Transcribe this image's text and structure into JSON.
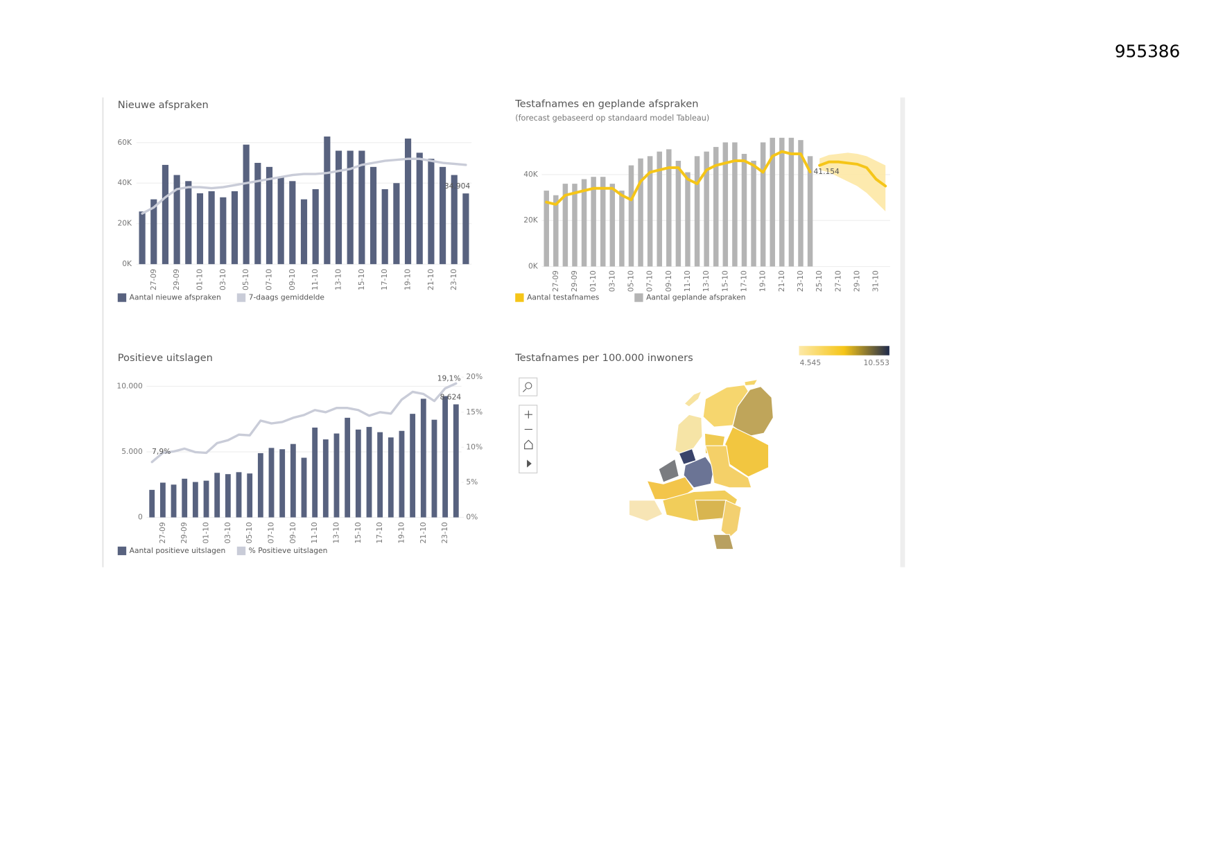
{
  "header": {
    "page_number": "955386"
  },
  "chart_data": [
    {
      "type": "bar",
      "title": "Nieuwe afspraken",
      "categories": [
        null,
        "27-09",
        null,
        "29-09",
        null,
        "01-10",
        null,
        "03-10",
        null,
        "05-10",
        null,
        "07-10",
        null,
        "09-10",
        null,
        "11-10",
        null,
        "13-10",
        null,
        "15-10",
        null,
        "17-10",
        null,
        "19-10",
        null,
        "21-10",
        null,
        "23-10",
        null
      ],
      "series": [
        {
          "name": "Aantal nieuwe afspraken",
          "type": "bar",
          "color": "#58627f",
          "values": [
            26000,
            32000,
            49000,
            44000,
            41000,
            35000,
            36000,
            33000,
            36000,
            59000,
            50000,
            48000,
            43000,
            41000,
            32000,
            37000,
            63000,
            56000,
            56000,
            56000,
            48000,
            37000,
            40000,
            62000,
            55000,
            52000,
            48000,
            44000,
            34904
          ],
          "value_labels": [
            null,
            null,
            null,
            null,
            null,
            null,
            null,
            null,
            null,
            null,
            null,
            null,
            null,
            null,
            null,
            null,
            null,
            null,
            null,
            null,
            null,
            null,
            null,
            null,
            null,
            null,
            null,
            null,
            "34.904"
          ]
        },
        {
          "name": "7-daags gemiddelde",
          "type": "line",
          "color": "#c9ccd8",
          "values": [
            25000,
            28000,
            33000,
            37000,
            38000,
            38000,
            37500,
            38000,
            39000,
            40000,
            41000,
            42000,
            43000,
            44000,
            44500,
            44500,
            45000,
            46000,
            47000,
            49000,
            50000,
            51000,
            51500,
            52000,
            52000,
            51000,
            50000,
            49500,
            49000
          ]
        }
      ],
      "ylim": [
        0,
        65000
      ],
      "yticks": [
        {
          "value": 0,
          "label": "0K"
        },
        {
          "value": 20000,
          "label": "20K"
        },
        {
          "value": 40000,
          "label": "40K"
        },
        {
          "value": 60000,
          "label": "60K"
        }
      ],
      "grid": true,
      "legend": "bottom"
    },
    {
      "type": "bar",
      "title": "Testafnames en geplande afspraken",
      "subtitle": "(forecast gebaseerd op standaard model Tableau)",
      "categories": [
        null,
        "27-09",
        null,
        "29-09",
        null,
        "01-10",
        null,
        "03-10",
        null,
        "05-10",
        null,
        "07-10",
        null,
        "09-10",
        null,
        "11-10",
        null,
        "13-10",
        null,
        "15-10",
        null,
        "17-10",
        null,
        "19-10",
        null,
        "21-10",
        null,
        "23-10",
        null,
        "25-10",
        null,
        "27-10",
        null,
        "29-10",
        null,
        "31-10",
        null
      ],
      "series": [
        {
          "name": "Aantal testafnames",
          "type": "line",
          "color": "#f5c518",
          "values": [
            28000,
            27000,
            31000,
            32000,
            33000,
            34000,
            34000,
            34000,
            31000,
            29000,
            37000,
            41000,
            42000,
            43000,
            43000,
            38000,
            36000,
            42000,
            44000,
            45000,
            46000,
            46000,
            44000,
            41000,
            48000,
            50000,
            49000,
            49000,
            41154,
            null,
            null,
            null,
            null,
            null,
            null,
            null,
            null
          ],
          "value_labels": [
            null,
            null,
            null,
            null,
            null,
            null,
            null,
            null,
            null,
            null,
            null,
            null,
            null,
            null,
            null,
            null,
            null,
            null,
            null,
            null,
            null,
            null,
            null,
            null,
            null,
            null,
            null,
            null,
            "41.154",
            null,
            null,
            null,
            null,
            null,
            null,
            null,
            null
          ]
        },
        {
          "name": "Aantal geplande afspraken",
          "type": "bar",
          "color": "#b4b4b4",
          "values": [
            33000,
            31000,
            36000,
            36000,
            38000,
            39000,
            39000,
            36000,
            33000,
            44000,
            47000,
            48000,
            50000,
            51000,
            46000,
            41000,
            48000,
            50000,
            52000,
            54000,
            54000,
            49000,
            46000,
            54000,
            56000,
            56000,
            56000,
            55000,
            48000,
            null,
            null,
            null,
            null,
            null,
            null,
            null,
            null
          ]
        }
      ],
      "forecast": {
        "color": "#f5c518",
        "band_color": "#fde6a0",
        "values": [
          null,
          null,
          null,
          null,
          null,
          null,
          null,
          null,
          null,
          null,
          null,
          null,
          null,
          null,
          null,
          null,
          null,
          null,
          null,
          null,
          null,
          null,
          null,
          null,
          null,
          null,
          null,
          null,
          null,
          44000,
          45500,
          45500,
          45000,
          44500,
          43000,
          38000,
          35000
        ],
        "lower": [
          null,
          null,
          null,
          null,
          null,
          null,
          null,
          null,
          null,
          null,
          null,
          null,
          null,
          null,
          null,
          null,
          null,
          null,
          null,
          null,
          null,
          null,
          null,
          null,
          null,
          null,
          null,
          null,
          null,
          42000,
          41000,
          39000,
          37000,
          35000,
          32000,
          28000,
          24000
        ],
        "upper": [
          null,
          null,
          null,
          null,
          null,
          null,
          null,
          null,
          null,
          null,
          null,
          null,
          null,
          null,
          null,
          null,
          null,
          null,
          null,
          null,
          null,
          null,
          null,
          null,
          null,
          null,
          null,
          null,
          null,
          47000,
          48500,
          49000,
          49500,
          49000,
          48000,
          46000,
          44000
        ]
      },
      "ylim": [
        0,
        60000
      ],
      "yticks": [
        {
          "value": 0,
          "label": "0K"
        },
        {
          "value": 20000,
          "label": "20K"
        },
        {
          "value": 40000,
          "label": "40K"
        }
      ],
      "grid": true,
      "legend": "bottom"
    },
    {
      "type": "bar",
      "title": "Positieve uitslagen",
      "categories": [
        null,
        "27-09",
        null,
        "29-09",
        null,
        "01-10",
        null,
        "03-10",
        null,
        "05-10",
        null,
        "07-10",
        null,
        "09-10",
        null,
        "11-10",
        null,
        "13-10",
        null,
        "15-10",
        null,
        "17-10",
        null,
        "19-10",
        null,
        "21-10",
        null,
        "23-10",
        null
      ],
      "series": [
        {
          "name": "Aantal positieve uitslagen",
          "type": "bar",
          "color": "#58627f",
          "values": [
            2100,
            2650,
            2500,
            2950,
            2700,
            2800,
            3400,
            3300,
            3450,
            3350,
            4900,
            5300,
            5200,
            5600,
            4550,
            6850,
            5950,
            6400,
            7600,
            6700,
            6900,
            6500,
            6100,
            6600,
            7900,
            9050,
            7450,
            9250,
            8624
          ],
          "value_labels": [
            null,
            null,
            null,
            null,
            null,
            null,
            null,
            null,
            null,
            null,
            null,
            null,
            null,
            null,
            null,
            null,
            null,
            null,
            null,
            null,
            null,
            null,
            null,
            null,
            null,
            null,
            null,
            null,
            "8.624"
          ]
        },
        {
          "name": "% Positieve uitslagen",
          "type": "line",
          "axis": "y2",
          "color": "#c9ccd8",
          "values": [
            7.9,
            9.2,
            9.4,
            9.8,
            9.3,
            9.2,
            10.6,
            11.0,
            11.8,
            11.7,
            13.8,
            13.4,
            13.6,
            14.2,
            14.6,
            15.3,
            15.0,
            15.6,
            15.6,
            15.3,
            14.5,
            15.0,
            14.8,
            16.8,
            17.9,
            17.6,
            16.6,
            18.4,
            19.1
          ],
          "value_labels": [
            "7,9%",
            null,
            null,
            null,
            null,
            null,
            null,
            null,
            null,
            null,
            null,
            null,
            null,
            null,
            null,
            null,
            null,
            null,
            null,
            null,
            null,
            null,
            null,
            null,
            null,
            null,
            null,
            null,
            "19,1%"
          ]
        }
      ],
      "ylim": [
        0,
        10700
      ],
      "yticks": [
        0,
        {
          "value": 5000,
          "label": "5.000"
        },
        {
          "value": 10000,
          "label": "10.000"
        }
      ],
      "y2lim": [
        0,
        20
      ],
      "y2ticks": [
        {
          "value": 0,
          "label": "0%"
        },
        {
          "value": 5,
          "label": "5%"
        },
        {
          "value": 10,
          "label": "10%"
        },
        {
          "value": 15,
          "label": "15%"
        },
        {
          "value": 20,
          "label": "20%"
        }
      ],
      "grid": true,
      "legend": "bottom"
    },
    {
      "type": "map",
      "title": "Testafnames per 100.000 inwoners",
      "colorscale": {
        "min": {
          "value": 4545,
          "label": "4.545"
        },
        "max": {
          "value": 10553,
          "label": "10.553"
        },
        "colors": [
          "#fde9a8",
          "#f5c518",
          "#1f2a4c"
        ]
      }
    }
  ]
}
